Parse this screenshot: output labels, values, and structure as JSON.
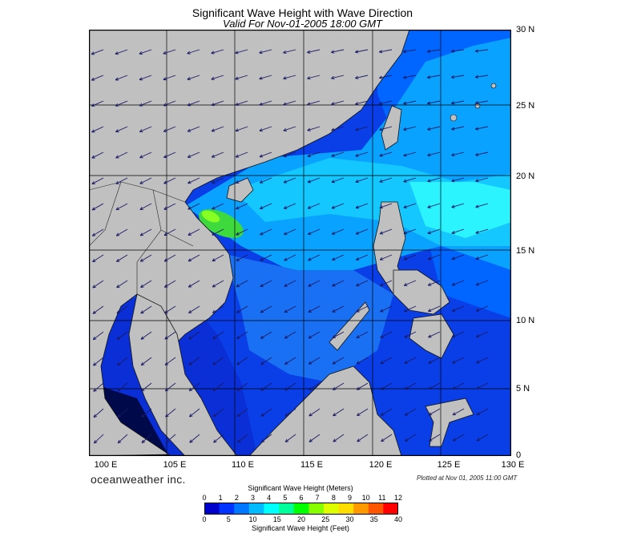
{
  "header": {
    "title": "Significant Wave Height with Wave Direction",
    "subtitle": "Valid For Nov-01-2005 18:00 GMT"
  },
  "map": {
    "lat_labels": [
      "30 N",
      "25 N",
      "20 N",
      "15 N",
      "10 N",
      "5 N",
      "0"
    ],
    "lon_labels": [
      "100 E",
      "105 E",
      "110 E",
      "115 E",
      "120 E",
      "125 E",
      "130 E"
    ],
    "lat_range": [
      0,
      30
    ],
    "lon_range": [
      99.5,
      130
    ],
    "grid": true,
    "colors": {
      "land": "#c0c0c0",
      "frame": "#000000",
      "arrow": "#1a1a66"
    }
  },
  "footer": {
    "brand": "oceanweather inc.",
    "plotted": "Plotted at Nov 01, 2005 11:00 GMT"
  },
  "legend": {
    "meters_title": "Significant Wave Height (Meters)",
    "feet_title": "Significant Wave Height (Feet)",
    "meters_ticks": [
      "0",
      "1",
      "2",
      "3",
      "4",
      "5",
      "6",
      "7",
      "8",
      "9",
      "10",
      "11",
      "12"
    ],
    "feet_ticks": [
      "0",
      "5",
      "10",
      "15",
      "20",
      "25",
      "30",
      "35",
      "40"
    ],
    "colors": [
      "#0000cc",
      "#0033ff",
      "#0077ff",
      "#00bbff",
      "#00ffff",
      "#00ff99",
      "#00ff00",
      "#88ff00",
      "#ddff00",
      "#ffdd00",
      "#ff9900",
      "#ff5500",
      "#ff0000"
    ]
  }
}
